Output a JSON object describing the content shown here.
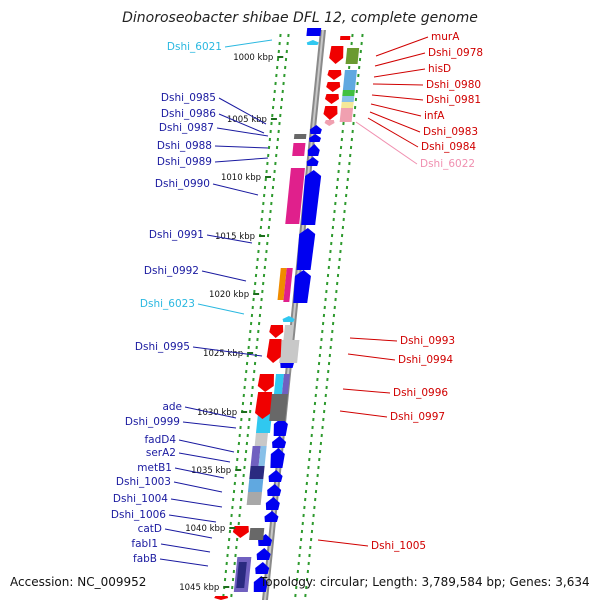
{
  "title": "Dinoroseobacter shibae DFL 12, complete genome",
  "footer": {
    "accession": "Accession: NC_009952",
    "topology": "Topology: circular; Length: 3,789,584 bp; Genes: 3,634"
  },
  "scale_ticks": [
    "1000 kbp",
    "1005 kbp",
    "1010 kbp",
    "1015 kbp",
    "1020 kbp",
    "1025 kbp",
    "1030 kbp",
    "1035 kbp",
    "1040 kbp",
    "1045 kbp"
  ],
  "left_labels": [
    {
      "text": "Dshi_6021",
      "color": "#2ab8e0"
    },
    {
      "text": "Dshi_0985",
      "color": "#1a1aa0"
    },
    {
      "text": "Dshi_0986",
      "color": "#1a1aa0"
    },
    {
      "text": "Dshi_0987",
      "color": "#1a1aa0"
    },
    {
      "text": "Dshi_0988",
      "color": "#1a1aa0"
    },
    {
      "text": "Dshi_0989",
      "color": "#1a1aa0"
    },
    {
      "text": "Dshi_0990",
      "color": "#1a1aa0"
    },
    {
      "text": "Dshi_0991",
      "color": "#1a1aa0"
    },
    {
      "text": "Dshi_0992",
      "color": "#1a1aa0"
    },
    {
      "text": "Dshi_6023",
      "color": "#2ab8e0"
    },
    {
      "text": "Dshi_0995",
      "color": "#1a1aa0"
    },
    {
      "text": "ade",
      "color": "#1a1aa0"
    },
    {
      "text": "Dshi_0999",
      "color": "#1a1aa0"
    },
    {
      "text": "fadD4",
      "color": "#1a1aa0"
    },
    {
      "text": "serA2",
      "color": "#1a1aa0"
    },
    {
      "text": "metB1",
      "color": "#1a1aa0"
    },
    {
      "text": "Dshi_1003",
      "color": "#1a1aa0"
    },
    {
      "text": "Dshi_1004",
      "color": "#1a1aa0"
    },
    {
      "text": "Dshi_1006",
      "color": "#1a1aa0"
    },
    {
      "text": "catD",
      "color": "#1a1aa0"
    },
    {
      "text": "fabI1",
      "color": "#1a1aa0"
    },
    {
      "text": "fabB",
      "color": "#1a1aa0"
    }
  ],
  "right_labels": [
    {
      "text": "murA",
      "color": "#d00000"
    },
    {
      "text": "Dshi_0978",
      "color": "#d00000"
    },
    {
      "text": "hisD",
      "color": "#d00000"
    },
    {
      "text": "Dshi_0980",
      "color": "#d00000"
    },
    {
      "text": "Dshi_0981",
      "color": "#d00000"
    },
    {
      "text": "infA",
      "color": "#d00000"
    },
    {
      "text": "Dshi_0983",
      "color": "#d00000"
    },
    {
      "text": "Dshi_0984",
      "color": "#d00000"
    },
    {
      "text": "Dshi_6022",
      "color": "#f090b0"
    },
    {
      "text": "Dshi_0993",
      "color": "#d00000"
    },
    {
      "text": "Dshi_0994",
      "color": "#d00000"
    },
    {
      "text": "Dshi_0996",
      "color": "#d00000"
    },
    {
      "text": "Dshi_0997",
      "color": "#d00000"
    },
    {
      "text": "Dshi_1005",
      "color": "#d00000"
    }
  ]
}
